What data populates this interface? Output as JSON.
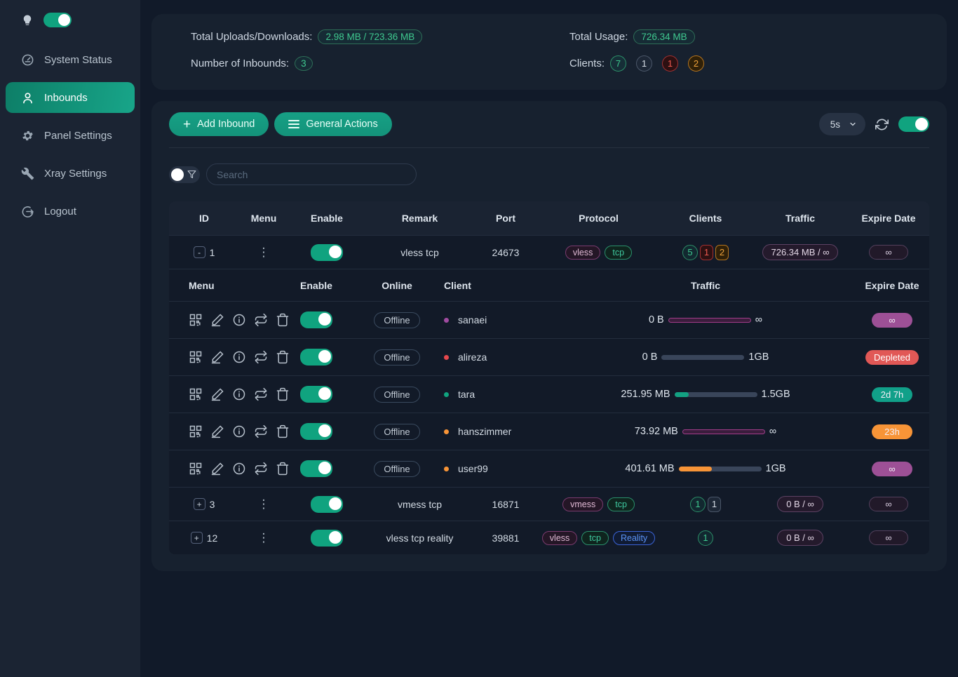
{
  "colors": {
    "accent_teal": "#16a085",
    "sidebar_bg": "#1b2433",
    "page_bg": "#111a29",
    "card_bg": "#17212f",
    "badge_green": "#3fc98f",
    "badge_red": "#ef5a50",
    "badge_orange": "#efa33c",
    "badge_gray": "#d5dce4",
    "expire_purple": "#9d5096",
    "expire_red": "#e15856",
    "expire_teal": "#11a089",
    "expire_orange": "#f79437",
    "bar_purple_border": "#a23c8a",
    "tag_reality_blue": "#5b93f5"
  },
  "sidebar": {
    "items": [
      {
        "label": "System Status"
      },
      {
        "label": "Inbounds"
      },
      {
        "label": "Panel Settings"
      },
      {
        "label": "Xray Settings"
      },
      {
        "label": "Logout"
      }
    ]
  },
  "stats": {
    "uploads_label": "Total Uploads/Downloads:",
    "uploads_value": "2.98 MB / 723.36 MB",
    "inbounds_label": "Number of Inbounds:",
    "inbounds_value": "3",
    "usage_label": "Total Usage:",
    "usage_value": "726.34 MB",
    "clients_label": "Clients:",
    "client_counts": [
      {
        "value": "7",
        "color": "green"
      },
      {
        "value": "1",
        "color": "gray"
      },
      {
        "value": "1",
        "color": "red"
      },
      {
        "value": "2",
        "color": "orange"
      }
    ]
  },
  "toolbar": {
    "add_inbound": "Add Inbound",
    "general_actions": "General Actions",
    "refresh_interval": "5s"
  },
  "search": {
    "placeholder": "Search"
  },
  "inbound_table": {
    "headers": {
      "id": "ID",
      "menu": "Menu",
      "enable": "Enable",
      "remark": "Remark",
      "port": "Port",
      "protocol": "Protocol",
      "clients": "Clients",
      "traffic": "Traffic",
      "expire": "Expire Date"
    }
  },
  "inbounds": [
    {
      "id": "1",
      "expand": "-",
      "remark": "vless tcp",
      "port": "24673",
      "protocols": [
        {
          "label": "vless"
        },
        {
          "label": "tcp"
        }
      ],
      "client_counts": [
        {
          "value": "5"
        },
        {
          "value": "1"
        },
        {
          "value": "2"
        }
      ],
      "traffic": "726.34 MB / ∞",
      "expire": "∞"
    },
    {
      "id": "3",
      "expand": "+",
      "remark": "vmess tcp",
      "port": "16871",
      "protocols": [
        {
          "label": "vmess"
        },
        {
          "label": "tcp"
        }
      ],
      "client_counts": [
        {
          "value": "1"
        },
        {
          "value": "1"
        }
      ],
      "traffic": "0 B / ∞",
      "expire": "∞"
    },
    {
      "id": "12",
      "expand": "+",
      "remark": "vless tcp reality",
      "port": "39881",
      "protocols": [
        {
          "label": "vless"
        },
        {
          "label": "tcp"
        },
        {
          "label": "Reality"
        }
      ],
      "client_counts": [
        {
          "value": "1"
        }
      ],
      "traffic": "0 B / ∞",
      "expire": "∞"
    }
  ],
  "client_table": {
    "headers": {
      "menu": "Menu",
      "enable": "Enable",
      "online": "Online",
      "client": "Client",
      "traffic": "Traffic",
      "expire": "Expire Date"
    },
    "rows": [
      {
        "name": "sanaei",
        "online": "Offline",
        "used": "0 B",
        "limit": "∞",
        "pct": 100,
        "expire": "∞"
      },
      {
        "name": "alireza",
        "online": "Offline",
        "used": "0 B",
        "limit": "1GB",
        "pct": 0,
        "expire": "Depleted"
      },
      {
        "name": "tara",
        "online": "Offline",
        "used": "251.95 MB",
        "limit": "1.5GB",
        "pct": 17,
        "expire": "2d 7h"
      },
      {
        "name": "hanszimmer",
        "online": "Offline",
        "used": "73.92 MB",
        "limit": "∞",
        "pct": 100,
        "expire": "23h"
      },
      {
        "name": "user99",
        "online": "Offline",
        "used": "401.61 MB",
        "limit": "1GB",
        "pct": 40,
        "expire": "∞"
      }
    ]
  }
}
